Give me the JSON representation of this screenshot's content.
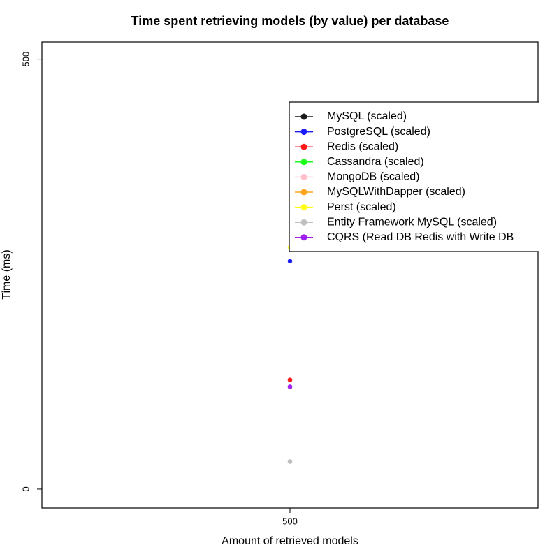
{
  "chart_data": {
    "type": "scatter",
    "title": "Time spent retrieving models (by value) per database",
    "x_label": "Amount of retrieved models",
    "y_label": "Time (ms)",
    "x": [
      500
    ],
    "series": [
      {
        "name": "MySQL (scaled)",
        "color": "#1a1a1a",
        "values": [
          null
        ]
      },
      {
        "name": "PostgreSQL (scaled)",
        "color": "#1a1aff",
        "values": [
          265
        ]
      },
      {
        "name": "Redis (scaled)",
        "color": "#ff1a1a",
        "values": [
          127
        ]
      },
      {
        "name": "Cassandra (scaled)",
        "color": "#1aff1a",
        "values": [
          null
        ]
      },
      {
        "name": "MongoDB (scaled)",
        "color": "#ffc0cb",
        "values": [
          null
        ]
      },
      {
        "name": "MySQLWithDapper (scaled)",
        "color": "#ffa51a",
        "values": [
          null
        ]
      },
      {
        "name": "Perst (scaled)",
        "color": "#ffff1a",
        "values": [
          281
        ]
      },
      {
        "name": "Entity Framework MySQL (scaled)",
        "color": "#c0c0c0",
        "values": [
          32
        ]
      },
      {
        "name": "CQRS (Read DB Redis with Write DB",
        "color": "#a020f0",
        "values": [
          119
        ]
      }
    ],
    "xlim": [
      480,
      520
    ],
    "xticks": [
      500
    ],
    "ylim": [
      -22,
      520
    ],
    "yticks": [
      0,
      500
    ],
    "legend": "right"
  }
}
